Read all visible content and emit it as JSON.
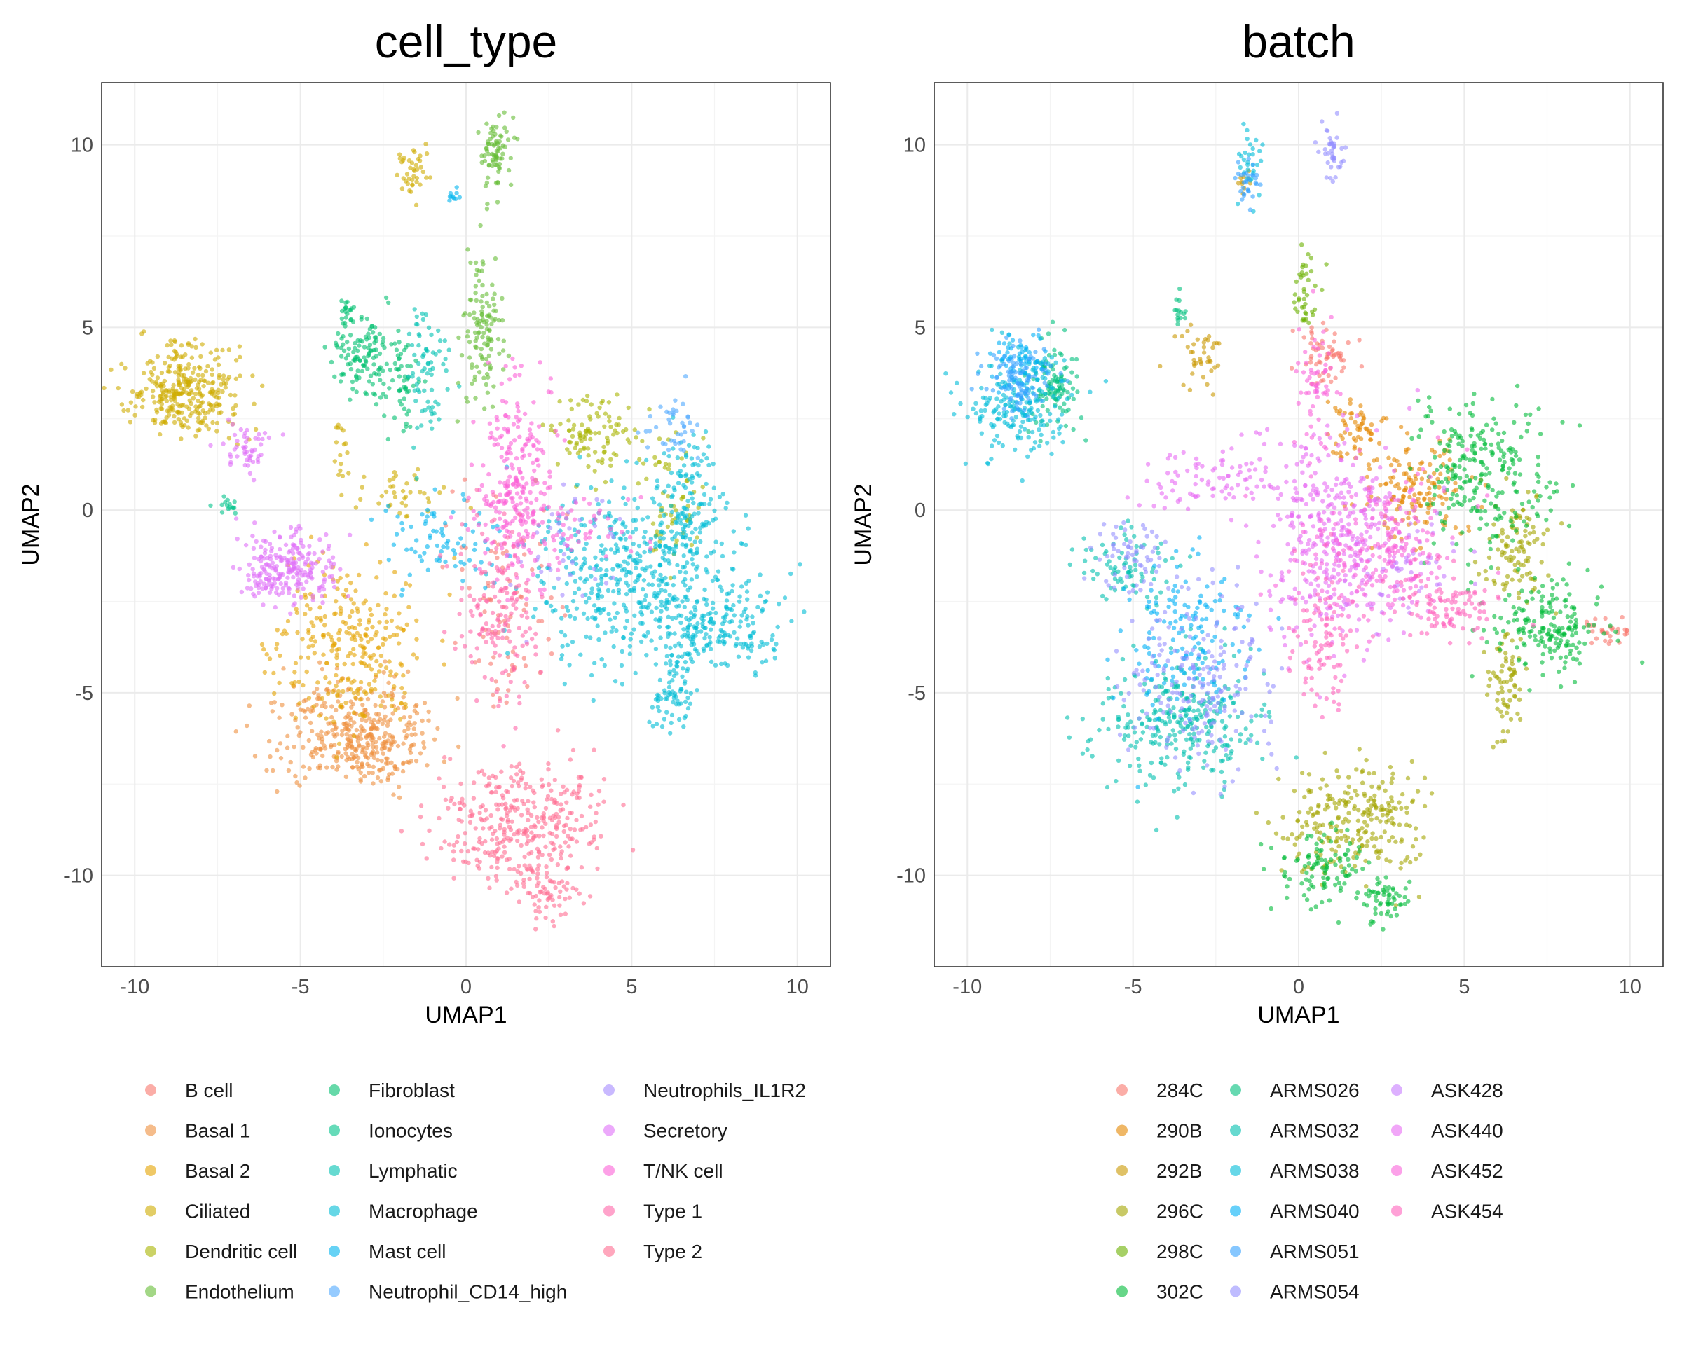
{
  "chart_data": [
    {
      "type": "scatter",
      "title": "cell_type",
      "xlabel": "UMAP1",
      "ylabel": "UMAP2",
      "xlim": [
        -11,
        11
      ],
      "ylim": [
        -12.5,
        11.7
      ],
      "xticks": [
        -10,
        -5,
        0,
        5,
        10
      ],
      "yticks": [
        -10,
        -5,
        0,
        5,
        10
      ],
      "grid": true,
      "legend_position": "bottom",
      "series": [
        {
          "name": "B cell",
          "color": "#F8766D",
          "clusters": [
            [
              1.0,
              -1.5,
              1.0,
              1.2,
              40
            ],
            [
              1.2,
              -4.0,
              0.6,
              0.8,
              40
            ]
          ]
        },
        {
          "name": "Basal 1",
          "color": "#EE8F3D",
          "clusters": [
            [
              -3.5,
              -5.9,
              1.3,
              0.7,
              260
            ],
            [
              -2.8,
              -6.5,
              0.9,
              0.5,
              120
            ]
          ]
        },
        {
          "name": "Basal 2",
          "color": "#E5A400",
          "clusters": [
            [
              -3.5,
              -3.8,
              1.2,
              1.1,
              280
            ]
          ]
        },
        {
          "name": "Ciliated",
          "color": "#CEAC00",
          "clusters": [
            [
              -8.4,
              3.2,
              0.9,
              0.6,
              320
            ],
            [
              -1.6,
              9.3,
              0.25,
              0.35,
              40
            ],
            [
              -2.0,
              0.5,
              0.8,
              0.4,
              40
            ],
            [
              -3.8,
              1.6,
              0.2,
              0.5,
              15
            ]
          ]
        },
        {
          "name": "Dendritic cell",
          "color": "#A9B400",
          "clusters": [
            [
              3.8,
              2.0,
              0.7,
              0.5,
              100
            ],
            [
              6.2,
              0.2,
              0.5,
              0.8,
              60
            ]
          ]
        },
        {
          "name": "Endothelium",
          "color": "#66BD36",
          "clusters": [
            [
              0.9,
              9.8,
              0.25,
              0.5,
              80
            ],
            [
              0.5,
              4.8,
              0.3,
              1.0,
              120
            ]
          ]
        },
        {
          "name": "Fibroblast",
          "color": "#00C06F",
          "clusters": [
            [
              -3.0,
              4.2,
              0.5,
              0.5,
              120
            ],
            [
              -3.6,
              5.4,
              0.12,
              0.25,
              20
            ],
            [
              -2.0,
              3.3,
              0.3,
              0.8,
              50
            ]
          ]
        },
        {
          "name": "Ionocytes",
          "color": "#00C38A",
          "clusters": [
            [
              -7.2,
              0.1,
              0.15,
              0.12,
              15
            ]
          ]
        },
        {
          "name": "Lymphatic",
          "color": "#00C1B2",
          "clusters": [
            [
              -1.2,
              3.7,
              0.3,
              1.0,
              70
            ]
          ]
        },
        {
          "name": "Macrophage",
          "color": "#00BDD6",
          "clusters": [
            [
              5.2,
              -1.8,
              1.5,
              1.2,
              500
            ],
            [
              7.5,
              -3.3,
              1.0,
              0.6,
              180
            ],
            [
              6.2,
              -5.2,
              0.3,
              0.5,
              60
            ],
            [
              6.8,
              0.3,
              0.5,
              1.0,
              100
            ]
          ]
        },
        {
          "name": "Mast cell",
          "color": "#00B4EF",
          "clusters": [
            [
              -0.6,
              -0.7,
              1.1,
              0.6,
              80
            ],
            [
              -0.4,
              8.6,
              0.1,
              0.08,
              10
            ]
          ]
        },
        {
          "name": "Neutrophil_CD14_high",
          "color": "#4FA8FF",
          "clusters": [
            [
              6.2,
              2.2,
              0.4,
              0.4,
              40
            ]
          ]
        },
        {
          "name": "Neutrophils_IL1R2",
          "color": "#A58AFF",
          "clusters": [
            [
              3.0,
              -1.0,
              1.0,
              0.8,
              40
            ]
          ]
        },
        {
          "name": "Secretory",
          "color": "#DF70F8",
          "clusters": [
            [
              -5.2,
              -1.5,
              0.7,
              0.5,
              200
            ],
            [
              -6.6,
              1.7,
              0.35,
              0.4,
              50
            ],
            [
              -6.0,
              -1.9,
              0.4,
              0.2,
              30
            ]
          ]
        },
        {
          "name": "T/NK cell",
          "color": "#FB61D7",
          "clusters": [
            [
              1.5,
              0.8,
              0.5,
              1.3,
              220
            ],
            [
              2.8,
              -0.5,
              1.2,
              0.7,
              100
            ]
          ]
        },
        {
          "name": "Type 1",
          "color": "#FF66A8",
          "clusters": [
            [
              1.0,
              -2.8,
              0.6,
              1.3,
              150
            ]
          ]
        },
        {
          "name": "Type 2",
          "color": "#FF6C91",
          "clusters": [
            [
              1.6,
              -8.6,
              1.2,
              0.8,
              350
            ],
            [
              2.4,
              -10.5,
              0.5,
              0.4,
              60
            ]
          ]
        }
      ]
    },
    {
      "type": "scatter",
      "title": "batch",
      "xlabel": "UMAP1",
      "ylabel": "UMAP2",
      "xlim": [
        -11,
        11
      ],
      "ylim": [
        -12.5,
        11.7
      ],
      "xticks": [
        -10,
        -5,
        0,
        5,
        10
      ],
      "yticks": [
        -10,
        -5,
        0,
        5,
        10
      ],
      "grid": true,
      "legend_position": "bottom",
      "series": [
        {
          "name": "284C",
          "color": "#F8766D",
          "clusters": [
            [
              0.8,
              4.3,
              0.4,
              0.5,
              60
            ],
            [
              9.3,
              -3.3,
              0.4,
              0.2,
              30
            ]
          ]
        },
        {
          "name": "290B",
          "color": "#E58700",
          "clusters": [
            [
              3.6,
              0.5,
              0.8,
              0.8,
              150
            ],
            [
              1.7,
              2.2,
              0.4,
              0.5,
              60
            ]
          ]
        },
        {
          "name": "292B",
          "color": "#C99800",
          "clusters": [
            [
              -3.0,
              4.2,
              0.4,
              0.5,
              40
            ],
            [
              -1.6,
              9.0,
              0.15,
              0.2,
              10
            ]
          ]
        },
        {
          "name": "296C",
          "color": "#A3A500",
          "clusters": [
            [
              1.8,
              -8.5,
              1.0,
              0.8,
              250
            ],
            [
              6.2,
              -4.8,
              0.3,
              0.8,
              70
            ],
            [
              6.6,
              -1.0,
              0.5,
              0.8,
              100
            ]
          ]
        },
        {
          "name": "298C",
          "color": "#6BB100",
          "clusters": [
            [
              0.2,
              5.8,
              0.2,
              0.6,
              40
            ]
          ]
        },
        {
          "name": "302C",
          "color": "#00BA38",
          "clusters": [
            [
              5.5,
              1.0,
              1.0,
              1.0,
              250
            ],
            [
              7.5,
              -3.2,
              0.9,
              0.6,
              180
            ],
            [
              0.7,
              -9.8,
              0.6,
              0.5,
              100
            ],
            [
              2.6,
              -10.6,
              0.4,
              0.4,
              60
            ]
          ]
        },
        {
          "name": "ARMS026",
          "color": "#00BF7D",
          "clusters": [
            [
              -7.4,
              3.4,
              0.4,
              0.6,
              100
            ],
            [
              -3.6,
              5.4,
              0.12,
              0.25,
              15
            ]
          ]
        },
        {
          "name": "ARMS032",
          "color": "#00C0AF",
          "clusters": [
            [
              -3.5,
              -5.8,
              1.2,
              0.9,
              300
            ],
            [
              -5.2,
              -1.5,
              0.7,
              0.5,
              80
            ]
          ]
        },
        {
          "name": "ARMS038",
          "color": "#00BCD8",
          "clusters": [
            [
              -8.5,
              2.8,
              0.8,
              0.7,
              200
            ],
            [
              -1.4,
              9.5,
              0.2,
              0.4,
              30
            ]
          ]
        },
        {
          "name": "ARMS040",
          "color": "#00B0F6",
          "clusters": [
            [
              -3.3,
              -3.5,
              1.0,
              1.0,
              150
            ],
            [
              -8.5,
              4.0,
              0.4,
              0.4,
              60
            ]
          ]
        },
        {
          "name": "ARMS051",
          "color": "#35A2FF",
          "clusters": [
            [
              -8.5,
              3.6,
              0.5,
              0.5,
              100
            ],
            [
              -1.6,
              9.0,
              0.2,
              0.3,
              30
            ]
          ]
        },
        {
          "name": "ARMS054",
          "color": "#9590FF",
          "clusters": [
            [
              -3.0,
              -4.8,
              1.1,
              1.2,
              200
            ],
            [
              1.0,
              9.8,
              0.2,
              0.4,
              40
            ],
            [
              -5.0,
              -1.2,
              0.6,
              0.5,
              60
            ]
          ]
        },
        {
          "name": "ASK428",
          "color": "#C77CFF",
          "clusters": [
            [
              3.0,
              -1.5,
              1.0,
              0.8,
              60
            ]
          ]
        },
        {
          "name": "ASK440",
          "color": "#E76BF3",
          "clusters": [
            [
              1.0,
              -0.8,
              1.1,
              1.5,
              400
            ],
            [
              -2.5,
              0.8,
              1.0,
              0.6,
              80
            ]
          ]
        },
        {
          "name": "ASK452",
          "color": "#FA62DB",
          "clusters": [
            [
              2.5,
              -1.0,
              1.2,
              1.0,
              200
            ],
            [
              0.5,
              3.5,
              0.3,
              1.0,
              60
            ]
          ]
        },
        {
          "name": "ASK454",
          "color": "#FF62BC",
          "clusters": [
            [
              0.7,
              -3.5,
              0.5,
              1.0,
              100
            ],
            [
              4.5,
              -2.6,
              0.8,
              0.5,
              100
            ]
          ]
        }
      ]
    }
  ]
}
